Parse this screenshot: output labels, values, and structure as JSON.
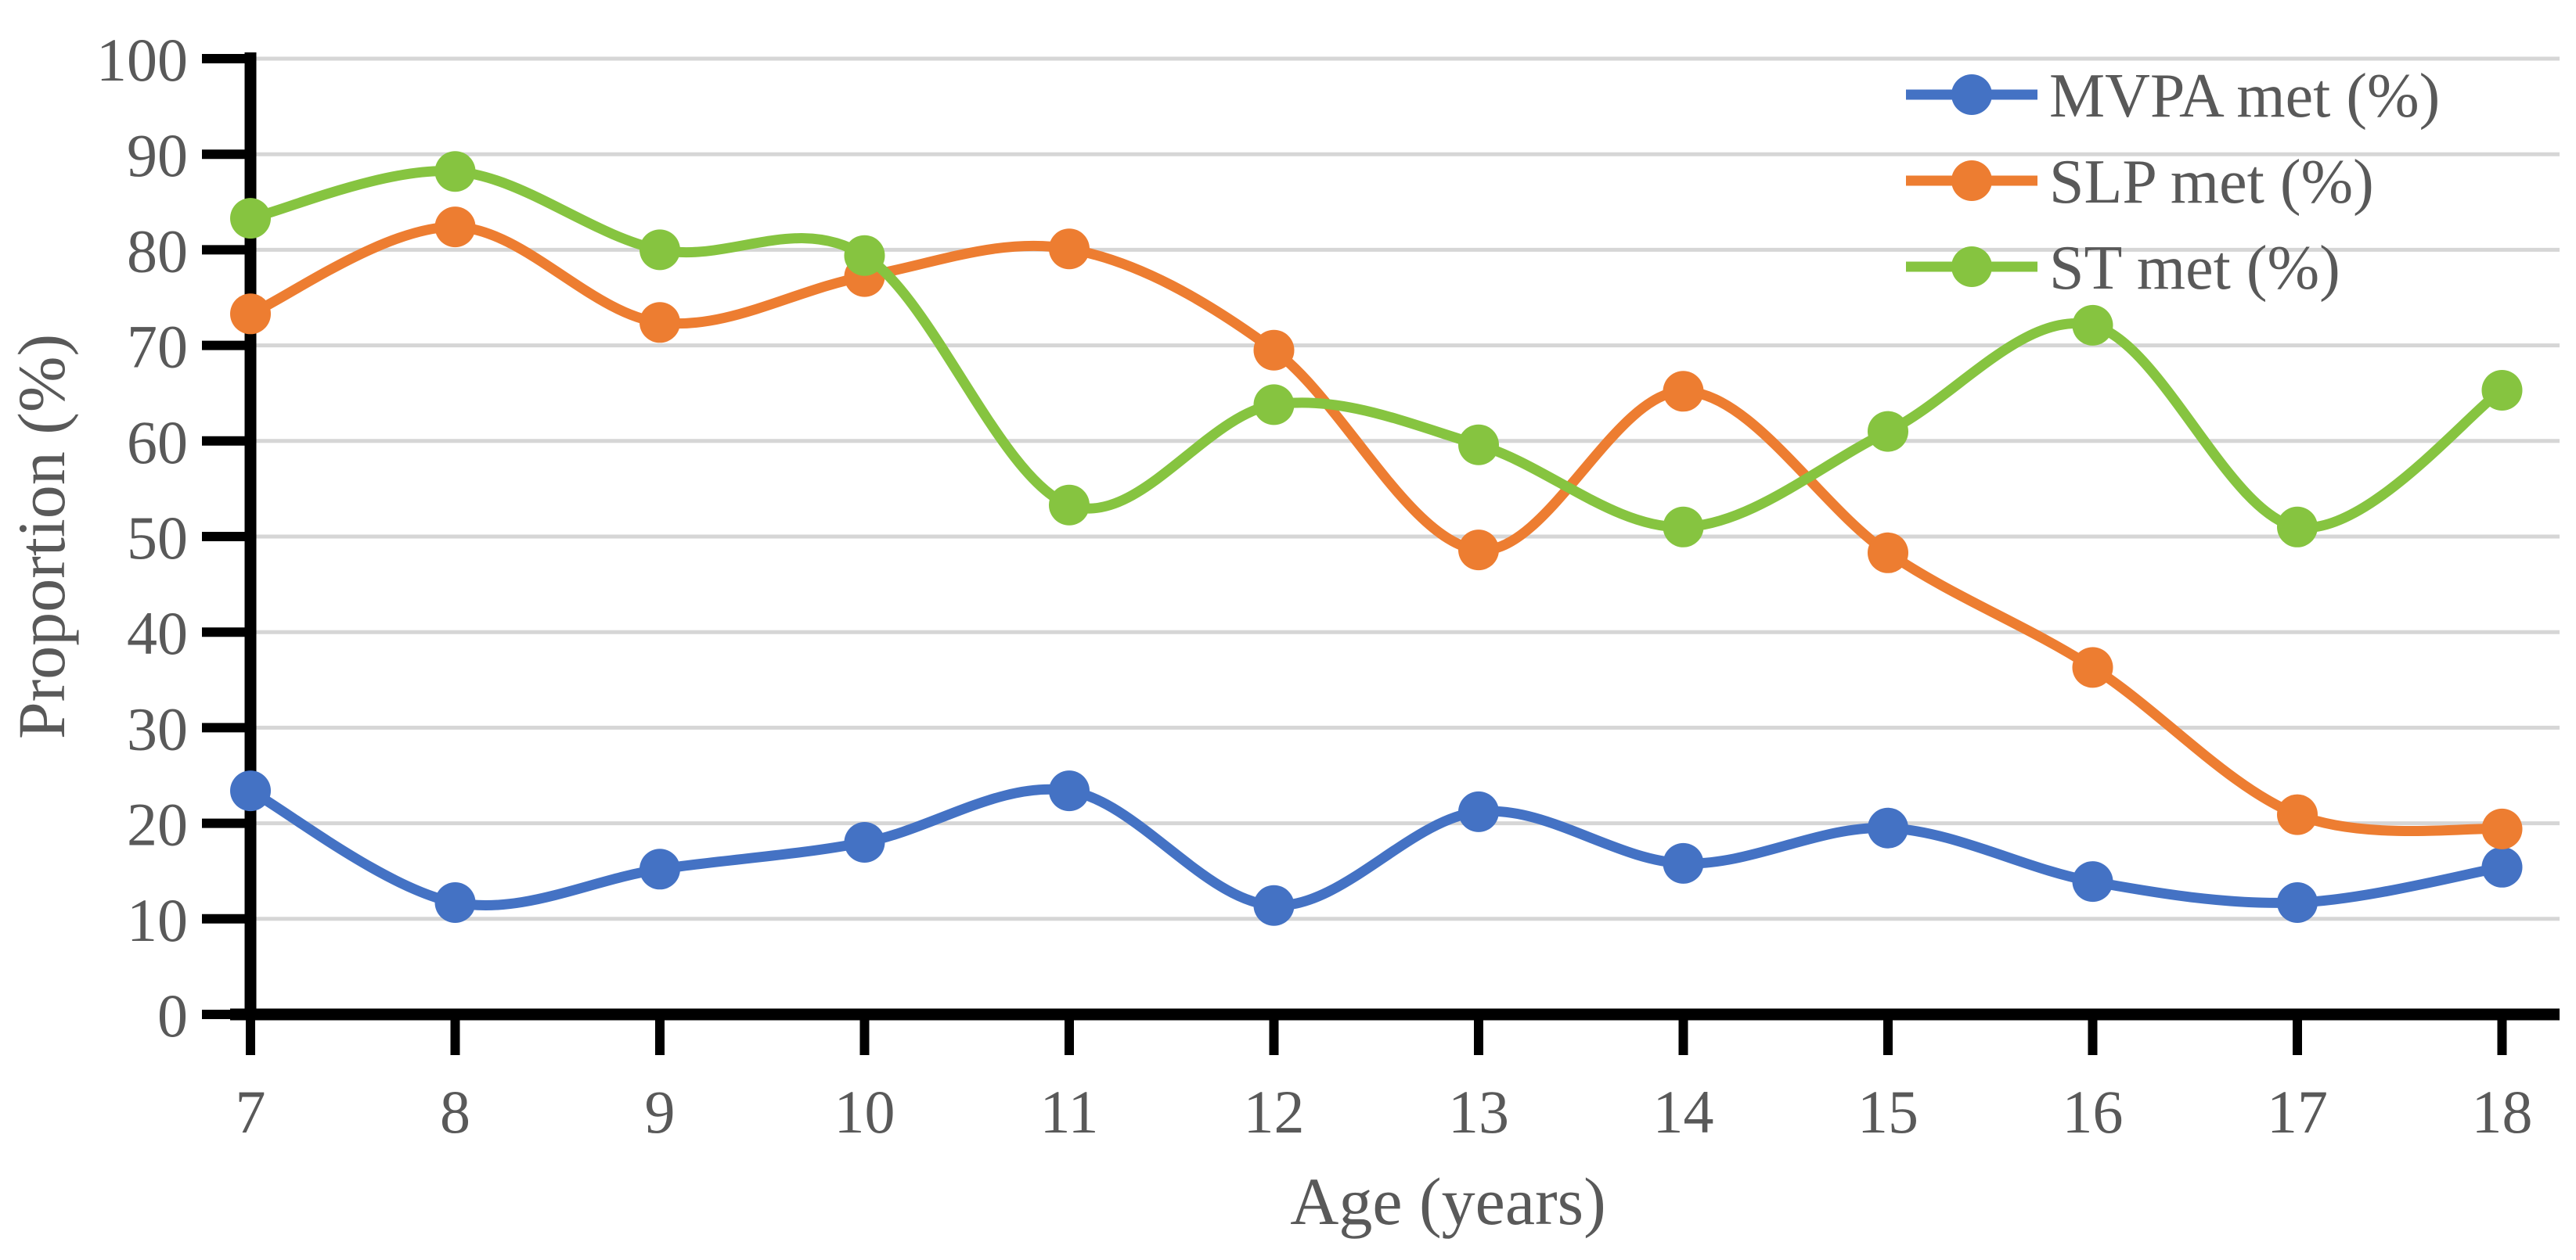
{
  "chart_data": {
    "type": "line",
    "line_style": "smooth",
    "marker": "circle",
    "title": "",
    "xlabel": "Age (years)",
    "ylabel": "Proportion (%)",
    "x": [
      7,
      8,
      9,
      10,
      11,
      12,
      13,
      14,
      15,
      16,
      17,
      18
    ],
    "ylim": [
      0,
      100
    ],
    "yticks": [
      0,
      10,
      20,
      30,
      40,
      50,
      60,
      70,
      80,
      90,
      100
    ],
    "grid": true,
    "legend_position": "top-right",
    "series": [
      {
        "name": "MVPA met (%)",
        "color": "#4472C4",
        "values": [
          23.4,
          11.7,
          15.2,
          18.0,
          23.4,
          11.4,
          21.2,
          15.8,
          19.5,
          13.9,
          11.7,
          15.4
        ]
      },
      {
        "name": "SLP met (%)",
        "color": "#ED7D31",
        "values": [
          73.3,
          82.4,
          72.4,
          77.2,
          80.1,
          69.5,
          48.6,
          65.2,
          48.3,
          36.3,
          20.9,
          19.4
        ]
      },
      {
        "name": "ST met (%)",
        "color": "#86C440",
        "values": [
          83.3,
          88.2,
          80.0,
          79.4,
          53.3,
          63.8,
          59.6,
          51.0,
          61.0,
          72.1,
          51.0,
          65.3
        ]
      }
    ],
    "colors": {
      "axis": "#000000",
      "grid": "#D6D6D6",
      "text": "#595959",
      "background": "#FFFFFF"
    }
  }
}
